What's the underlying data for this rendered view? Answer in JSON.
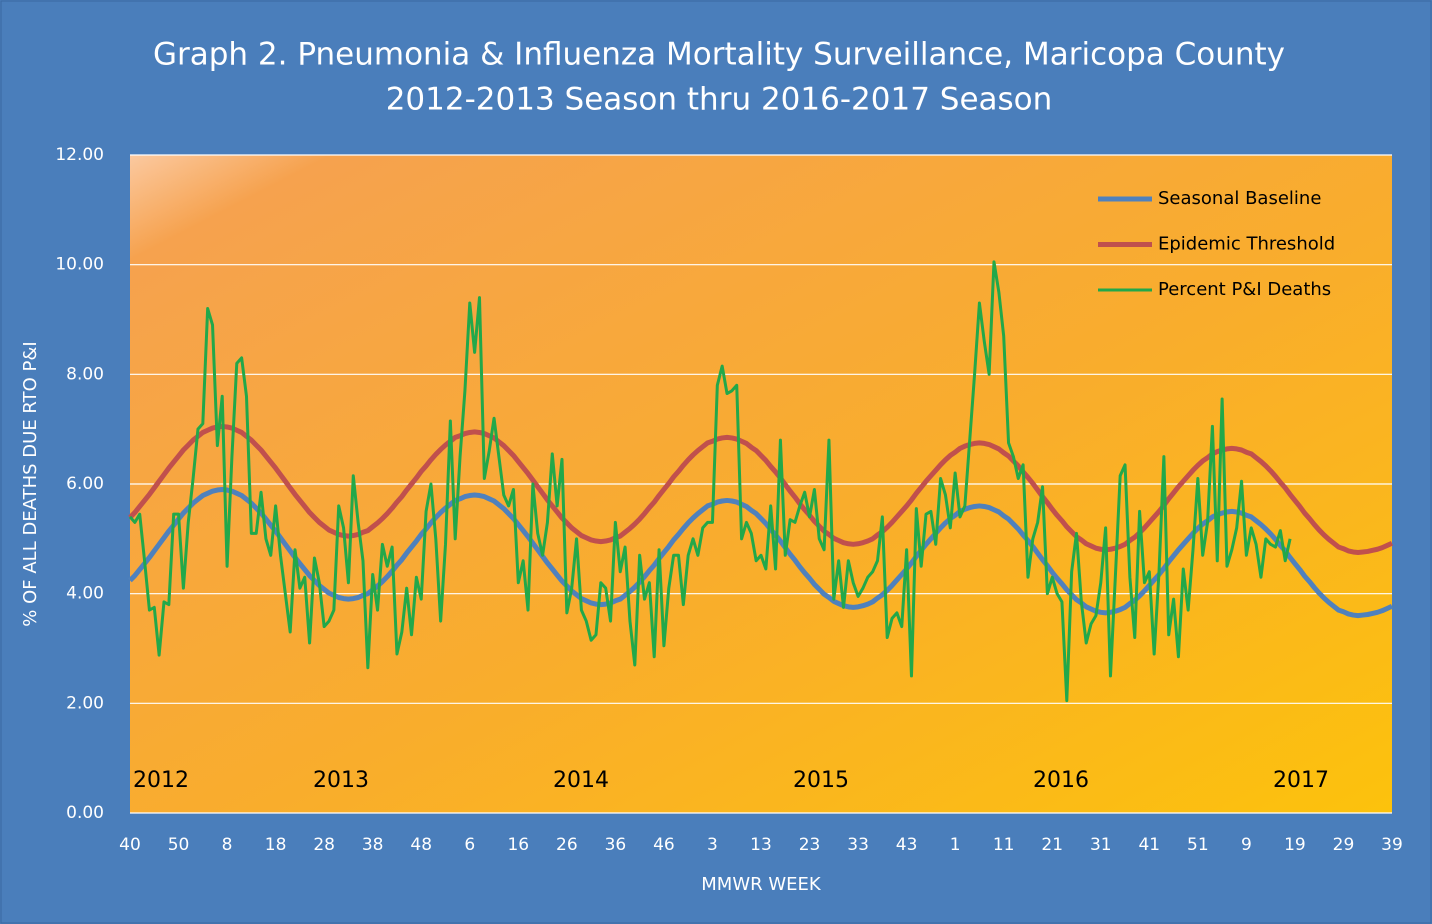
{
  "chart_data": {
    "type": "line",
    "title": "Graph 2. Pneumonia & Influenza Mortality Surveillance, Maricopa County",
    "subtitle": "2012-2013 Season thru 2016-2017 Season",
    "xlabel": "MMWR WEEK",
    "ylabel": "% OF ALL DEATHS  DUE RTO P&I",
    "legend": "upper right",
    "grid": true,
    "ylim": [
      0,
      12
    ],
    "yticks": [
      {
        "value": 0,
        "label": "0.00"
      },
      {
        "value": 2,
        "label": "2.00"
      },
      {
        "value": 4,
        "label": "4.00"
      },
      {
        "value": 6,
        "label": "6.00"
      },
      {
        "value": 8,
        "label": "8.00"
      },
      {
        "value": 10,
        "label": "10.00"
      },
      {
        "value": 12,
        "label": "12.00"
      }
    ],
    "annotations": [
      "2012",
      "2013",
      "2014",
      "2015",
      "2016",
      "2017"
    ],
    "categories": [
      "40",
      null,
      null,
      null,
      null,
      null,
      null,
      null,
      null,
      null,
      "50",
      null,
      null,
      null,
      null,
      null,
      null,
      null,
      null,
      null,
      "8",
      null,
      null,
      null,
      null,
      null,
      null,
      null,
      null,
      null,
      "18",
      null,
      null,
      null,
      null,
      null,
      null,
      null,
      null,
      null,
      "28",
      null,
      null,
      null,
      null,
      null,
      null,
      null,
      null,
      null,
      "38",
      null,
      null,
      null,
      null,
      null,
      null,
      null,
      null,
      null,
      "48",
      null,
      null,
      null,
      null,
      null,
      null,
      null,
      null,
      null,
      "6",
      null,
      null,
      null,
      null,
      null,
      null,
      null,
      null,
      null,
      "16",
      null,
      null,
      null,
      null,
      null,
      null,
      null,
      null,
      null,
      "26",
      null,
      null,
      null,
      null,
      null,
      null,
      null,
      null,
      null,
      "36",
      null,
      null,
      null,
      null,
      null,
      null,
      null,
      null,
      null,
      "46",
      null,
      null,
      null,
      null,
      null,
      null,
      null,
      null,
      null,
      "3",
      null,
      null,
      null,
      null,
      null,
      null,
      null,
      null,
      null,
      "13",
      null,
      null,
      null,
      null,
      null,
      null,
      null,
      null,
      null,
      "23",
      null,
      null,
      null,
      null,
      null,
      null,
      null,
      null,
      null,
      "33",
      null,
      null,
      null,
      null,
      null,
      null,
      null,
      null,
      null,
      "43",
      null,
      null,
      null,
      null,
      null,
      null,
      null,
      null,
      null,
      "1",
      null,
      null,
      null,
      null,
      null,
      null,
      null,
      null,
      null,
      "11",
      null,
      null,
      null,
      null,
      null,
      null,
      null,
      null,
      null,
      "21",
      null,
      null,
      null,
      null,
      null,
      null,
      null,
      null,
      null,
      "31",
      null,
      null,
      null,
      null,
      null,
      null,
      null,
      null,
      null,
      "41",
      null,
      null,
      null,
      null,
      null,
      null,
      null,
      null,
      null,
      "51",
      null,
      null,
      null,
      null,
      null,
      null,
      null,
      null,
      null,
      "9",
      null,
      null,
      null,
      null,
      null,
      null,
      null,
      null,
      null,
      "19",
      null,
      null,
      null,
      null,
      null,
      null,
      null,
      null,
      null,
      "29",
      null,
      null,
      null,
      null,
      null,
      null,
      null,
      null,
      null,
      "39"
    ],
    "series": [
      {
        "name": "Seasonal Baseline",
        "color": "#4f81bd",
        "values": [
          4.24,
          4.33,
          4.44,
          4.55,
          4.66,
          4.78,
          4.9,
          5.02,
          5.14,
          5.25,
          5.36,
          5.47,
          5.56,
          5.65,
          5.72,
          5.79,
          5.83,
          5.87,
          5.89,
          5.9,
          5.89,
          5.87,
          5.83,
          5.79,
          5.72,
          5.65,
          5.56,
          5.47,
          5.36,
          5.25,
          5.14,
          5.02,
          4.9,
          4.78,
          4.66,
          4.55,
          4.44,
          4.33,
          4.24,
          4.15,
          4.08,
          4.01,
          3.97,
          3.93,
          3.91,
          3.9,
          3.91,
          3.93,
          3.97,
          4.0,
          4.07,
          4.14,
          4.22,
          4.31,
          4.41,
          4.52,
          4.62,
          4.74,
          4.85,
          4.96,
          5.08,
          5.18,
          5.29,
          5.39,
          5.48,
          5.56,
          5.63,
          5.7,
          5.73,
          5.77,
          5.79,
          5.8,
          5.79,
          5.77,
          5.73,
          5.69,
          5.62,
          5.55,
          5.46,
          5.37,
          5.26,
          5.15,
          5.04,
          4.92,
          4.8,
          4.68,
          4.56,
          4.45,
          4.34,
          4.23,
          4.14,
          4.05,
          3.98,
          3.91,
          3.87,
          3.83,
          3.81,
          3.8,
          3.81,
          3.83,
          3.87,
          3.9,
          3.97,
          4.04,
          4.12,
          4.21,
          4.31,
          4.42,
          4.52,
          4.64,
          4.75,
          4.86,
          4.98,
          5.08,
          5.19,
          5.29,
          5.38,
          5.46,
          5.53,
          5.6,
          5.63,
          5.67,
          5.69,
          5.7,
          5.69,
          5.67,
          5.63,
          5.59,
          5.52,
          5.46,
          5.37,
          5.28,
          5.17,
          5.07,
          4.96,
          4.84,
          4.72,
          4.61,
          4.49,
          4.38,
          4.28,
          4.17,
          4.08,
          3.99,
          3.93,
          3.86,
          3.82,
          3.78,
          3.76,
          3.75,
          3.76,
          3.78,
          3.81,
          3.85,
          3.92,
          3.98,
          4.06,
          4.15,
          4.25,
          4.35,
          4.45,
          4.56,
          4.68,
          4.79,
          4.9,
          5.0,
          5.1,
          5.2,
          5.29,
          5.37,
          5.43,
          5.5,
          5.54,
          5.57,
          5.59,
          5.6,
          5.59,
          5.57,
          5.53,
          5.49,
          5.42,
          5.36,
          5.27,
          5.18,
          5.07,
          4.97,
          4.86,
          4.74,
          4.62,
          4.51,
          4.39,
          4.28,
          4.18,
          4.07,
          3.98,
          3.89,
          3.83,
          3.76,
          3.72,
          3.68,
          3.66,
          3.65,
          3.66,
          3.68,
          3.71,
          3.75,
          3.82,
          3.88,
          3.96,
          4.05,
          4.15,
          4.25,
          4.35,
          4.46,
          4.58,
          4.69,
          4.8,
          4.9,
          5.0,
          5.1,
          5.19,
          5.27,
          5.33,
          5.4,
          5.44,
          5.47,
          5.49,
          5.5,
          5.49,
          5.47,
          5.43,
          5.4,
          5.33,
          5.26,
          5.18,
          5.09,
          4.99,
          4.88,
          4.78,
          4.66,
          4.55,
          4.44,
          4.32,
          4.22,
          4.11,
          4.01,
          3.92,
          3.84,
          3.77,
          3.7,
          3.67,
          3.63,
          3.61,
          3.6,
          3.61,
          3.62,
          3.64,
          3.66,
          3.69,
          3.73,
          3.77
        ]
      },
      {
        "name": "Epidemic Threshold",
        "color": "#c0504d",
        "values": [
          5.39,
          5.48,
          5.59,
          5.7,
          5.81,
          5.93,
          6.05,
          6.17,
          6.29,
          6.4,
          6.51,
          6.62,
          6.71,
          6.8,
          6.87,
          6.94,
          6.98,
          7.02,
          7.04,
          7.05,
          7.04,
          7.02,
          6.98,
          6.94,
          6.87,
          6.8,
          6.71,
          6.62,
          6.51,
          6.4,
          6.29,
          6.17,
          6.05,
          5.93,
          5.81,
          5.7,
          5.59,
          5.48,
          5.39,
          5.3,
          5.23,
          5.16,
          5.12,
          5.08,
          5.06,
          5.05,
          5.06,
          5.08,
          5.12,
          5.15,
          5.22,
          5.29,
          5.37,
          5.46,
          5.56,
          5.67,
          5.77,
          5.89,
          6.0,
          6.11,
          6.23,
          6.33,
          6.44,
          6.54,
          6.63,
          6.71,
          6.78,
          6.85,
          6.88,
          6.92,
          6.94,
          6.95,
          6.94,
          6.92,
          6.88,
          6.84,
          6.77,
          6.7,
          6.61,
          6.52,
          6.41,
          6.3,
          6.19,
          6.07,
          5.95,
          5.83,
          5.71,
          5.6,
          5.49,
          5.38,
          5.29,
          5.2,
          5.13,
          5.06,
          5.02,
          4.98,
          4.96,
          4.95,
          4.96,
          4.98,
          5.02,
          5.05,
          5.12,
          5.19,
          5.27,
          5.36,
          5.46,
          5.57,
          5.67,
          5.79,
          5.9,
          6.01,
          6.13,
          6.23,
          6.34,
          6.44,
          6.53,
          6.61,
          6.68,
          6.75,
          6.78,
          6.82,
          6.84,
          6.85,
          6.84,
          6.82,
          6.78,
          6.74,
          6.67,
          6.61,
          6.52,
          6.43,
          6.32,
          6.22,
          6.11,
          5.99,
          5.87,
          5.76,
          5.64,
          5.53,
          5.43,
          5.32,
          5.23,
          5.14,
          5.08,
          5.01,
          4.97,
          4.93,
          4.91,
          4.9,
          4.91,
          4.93,
          4.96,
          5.0,
          5.07,
          5.13,
          5.21,
          5.3,
          5.4,
          5.5,
          5.6,
          5.71,
          5.83,
          5.94,
          6.05,
          6.15,
          6.25,
          6.35,
          6.44,
          6.52,
          6.58,
          6.65,
          6.69,
          6.72,
          6.74,
          6.75,
          6.74,
          6.72,
          6.68,
          6.64,
          6.57,
          6.51,
          6.42,
          6.33,
          6.22,
          6.12,
          6.01,
          5.89,
          5.77,
          5.66,
          5.54,
          5.43,
          5.33,
          5.22,
          5.13,
          5.04,
          4.98,
          4.91,
          4.87,
          4.83,
          4.81,
          4.8,
          4.81,
          4.83,
          4.86,
          4.9,
          4.97,
          5.03,
          5.11,
          5.2,
          5.3,
          5.4,
          5.5,
          5.61,
          5.73,
          5.84,
          5.95,
          6.05,
          6.15,
          6.25,
          6.34,
          6.42,
          6.48,
          6.55,
          6.59,
          6.62,
          6.64,
          6.65,
          6.64,
          6.62,
          6.58,
          6.55,
          6.48,
          6.41,
          6.33,
          6.24,
          6.14,
          6.03,
          5.93,
          5.81,
          5.7,
          5.59,
          5.47,
          5.37,
          5.26,
          5.16,
          5.07,
          4.99,
          4.92,
          4.85,
          4.82,
          4.78,
          4.76,
          4.75,
          4.76,
          4.77,
          4.79,
          4.81,
          4.84,
          4.88,
          4.92
        ]
      },
      {
        "name": "Percent P&I Deaths",
        "color": "#22a84a",
        "values": [
          5.4,
          5.3,
          5.45,
          4.6,
          3.7,
          3.75,
          2.88,
          3.85,
          3.8,
          5.45,
          5.45,
          4.1,
          5.3,
          6.1,
          7.0,
          7.1,
          9.2,
          8.9,
          6.7,
          7.6,
          4.5,
          6.5,
          8.2,
          8.3,
          7.6,
          5.1,
          5.1,
          5.85,
          5.0,
          4.7,
          5.6,
          4.7,
          4.0,
          3.3,
          4.8,
          4.1,
          4.3,
          3.1,
          4.65,
          4.2,
          3.4,
          3.5,
          3.7,
          5.6,
          5.2,
          4.2,
          6.15,
          5.3,
          4.6,
          2.65,
          4.35,
          3.7,
          4.9,
          4.5,
          4.85,
          2.9,
          3.3,
          4.1,
          3.25,
          4.3,
          3.9,
          5.5,
          6.0,
          5.0,
          3.5,
          4.9,
          7.15,
          5.0,
          6.5,
          7.7,
          9.3,
          8.4,
          9.4,
          6.1,
          6.6,
          7.2,
          6.5,
          5.8,
          5.6,
          5.9,
          4.2,
          4.6,
          3.7,
          6.0,
          5.1,
          4.7,
          5.3,
          6.55,
          5.6,
          6.45,
          3.65,
          4.1,
          5.0,
          3.7,
          3.5,
          3.15,
          3.25,
          4.2,
          4.1,
          3.5,
          5.3,
          4.4,
          4.85,
          3.5,
          2.7,
          4.7,
          3.9,
          4.2,
          2.85,
          4.8,
          3.05,
          4.1,
          4.7,
          4.7,
          3.8,
          4.7,
          5.0,
          4.7,
          5.2,
          5.3,
          5.3,
          7.8,
          8.15,
          7.65,
          7.7,
          7.8,
          5.0,
          5.3,
          5.1,
          4.6,
          4.7,
          4.45,
          5.6,
          4.45,
          6.8,
          4.7,
          5.35,
          5.3,
          5.6,
          5.85,
          5.4,
          5.9,
          5.0,
          4.8,
          6.8,
          3.9,
          4.6,
          3.75,
          4.6,
          4.2,
          3.95,
          4.1,
          4.3,
          4.4,
          4.6,
          5.4,
          3.2,
          3.55,
          3.65,
          3.4,
          4.8,
          2.5,
          5.55,
          4.5,
          5.45,
          5.5,
          4.9,
          6.1,
          5.8,
          5.2,
          6.2,
          5.4,
          5.6,
          6.8,
          8.0,
          9.3,
          8.6,
          8.0,
          10.05,
          9.5,
          8.7,
          6.75,
          6.5,
          6.1,
          6.35,
          4.3,
          5.0,
          5.3,
          5.95,
          4.0,
          4.3,
          4.0,
          3.85,
          2.05,
          4.4,
          5.1,
          3.85,
          3.1,
          3.45,
          3.6,
          4.2,
          5.2,
          2.5,
          4.3,
          6.15,
          6.35,
          4.3,
          3.2,
          5.5,
          4.2,
          4.4,
          2.9,
          4.4,
          6.5,
          3.25,
          3.9,
          2.85,
          4.45,
          3.7,
          4.8,
          6.1,
          4.7,
          5.3,
          7.05,
          4.6,
          7.55,
          4.5,
          4.8,
          5.2,
          6.05,
          4.7,
          5.2,
          4.9,
          4.3,
          5.0,
          4.9,
          4.85,
          5.15,
          4.6,
          5.0,
          null,
          null,
          null,
          null,
          null,
          null,
          null,
          null,
          null,
          null,
          null,
          null,
          null,
          null,
          null,
          null,
          null,
          null,
          null,
          null,
          null
        ]
      }
    ]
  }
}
